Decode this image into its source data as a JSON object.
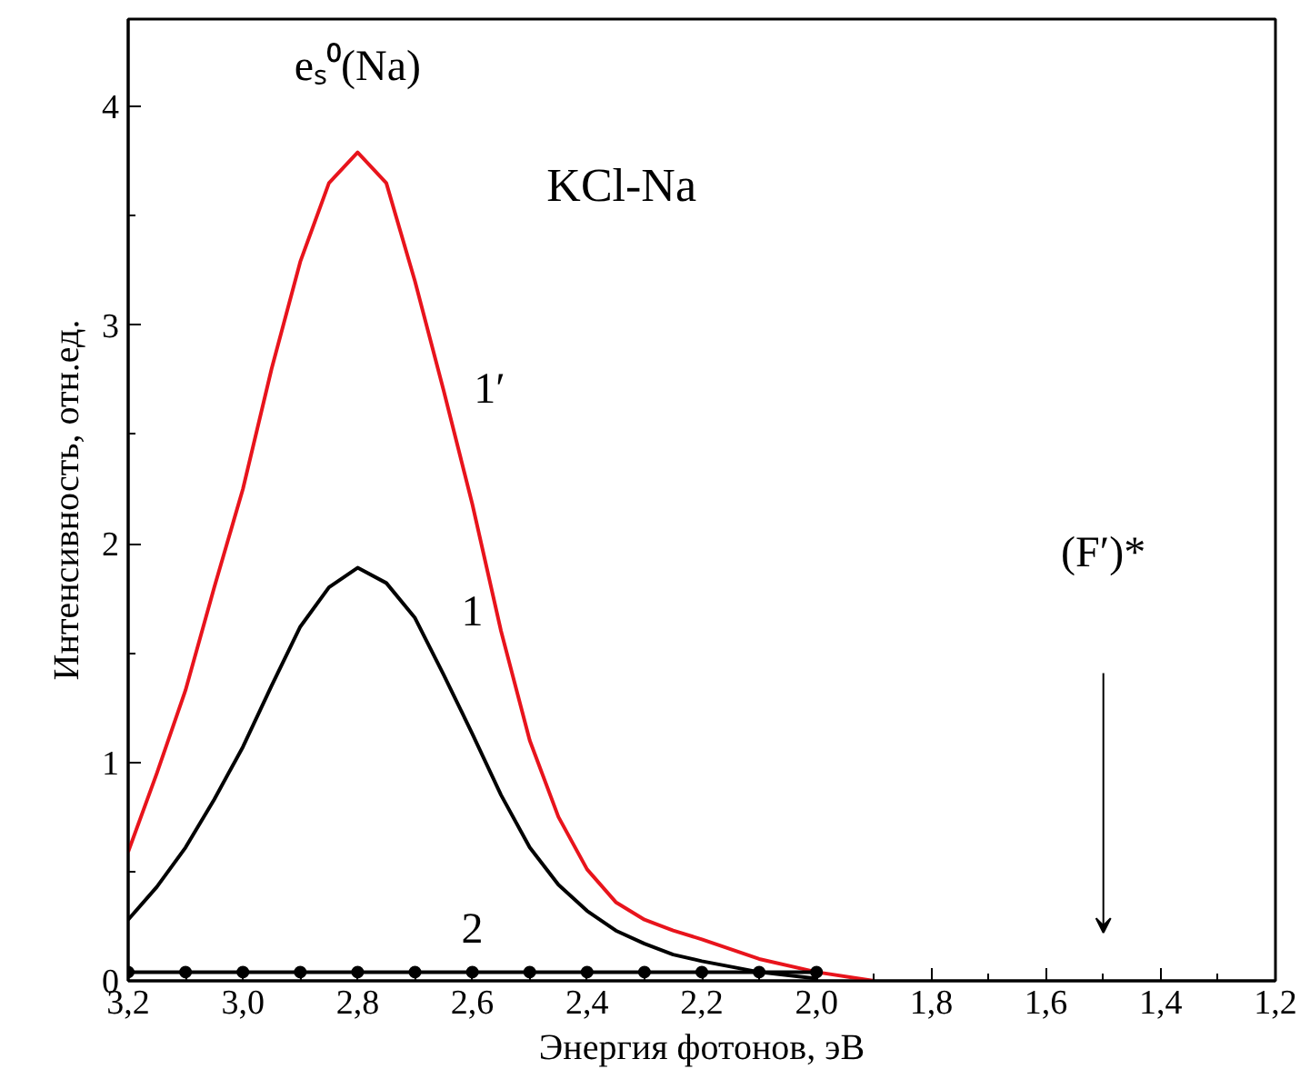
{
  "chart_data": {
    "type": "line",
    "xlabel": "Энергия фотонов, эВ",
    "ylabel": "Интенсивность, отн.ед.",
    "x": [
      3.2,
      3.15,
      3.1,
      3.05,
      3.0,
      2.95,
      2.9,
      2.85,
      2.8,
      2.75,
      2.7,
      2.65,
      2.6,
      2.55,
      2.5,
      2.45,
      2.4,
      2.35,
      2.3,
      2.25,
      2.2,
      2.1,
      2.0,
      1.9
    ],
    "series": [
      {
        "color": "#e8141c",
        "values": [
          0.59,
          0.95,
          1.33,
          1.8,
          2.25,
          2.8,
          3.29,
          3.65,
          3.79,
          3.65,
          3.2,
          2.7,
          2.18,
          1.6,
          1.1,
          0.75,
          0.51,
          0.36,
          0.28,
          0.23,
          0.19,
          0.1,
          0.04,
          0.0
        ]
      },
      {
        "color": "#000000",
        "values": [
          0.28,
          0.43,
          0.61,
          0.83,
          1.07,
          1.35,
          1.62,
          1.8,
          1.89,
          1.82,
          1.66,
          1.4,
          1.13,
          0.85,
          0.61,
          0.44,
          0.32,
          0.23,
          0.17,
          0.12,
          0.09,
          0.04,
          0.01,
          null
        ]
      },
      {
        "color": "#000000",
        "marker": "circle",
        "x": [
          3.2,
          3.1,
          3.0,
          2.9,
          2.8,
          2.7,
          2.6,
          2.5,
          2.4,
          2.3,
          2.2,
          2.1,
          2.0
        ],
        "values": [
          0.04,
          0.04,
          0.04,
          0.04,
          0.04,
          0.04,
          0.04,
          0.04,
          0.04,
          0.04,
          0.04,
          0.04,
          0.04
        ]
      }
    ],
    "xlim": [
      3.2,
      1.2
    ],
    "ylim": [
      0,
      4.4
    ],
    "xticks": [
      {
        "value": 3.2,
        "label": "3,2"
      },
      {
        "value": 3.0,
        "label": "3,0"
      },
      {
        "value": 2.8,
        "label": "2,8"
      },
      {
        "value": 2.6,
        "label": "2,6"
      },
      {
        "value": 2.4,
        "label": "2,4"
      },
      {
        "value": 2.2,
        "label": "2,2"
      },
      {
        "value": 2.0,
        "label": "2,0"
      },
      {
        "value": 1.8,
        "label": "1,8"
      },
      {
        "value": 1.6,
        "label": "1,6"
      },
      {
        "value": 1.4,
        "label": "1,4"
      },
      {
        "value": 1.2,
        "label": "1,2"
      }
    ],
    "yticks": [
      0,
      1,
      2,
      3,
      4
    ],
    "annotations": [
      "eₛ⁰(Na)",
      "1′",
      "1",
      "2",
      "(F′)*",
      "KCl-Na"
    ]
  }
}
